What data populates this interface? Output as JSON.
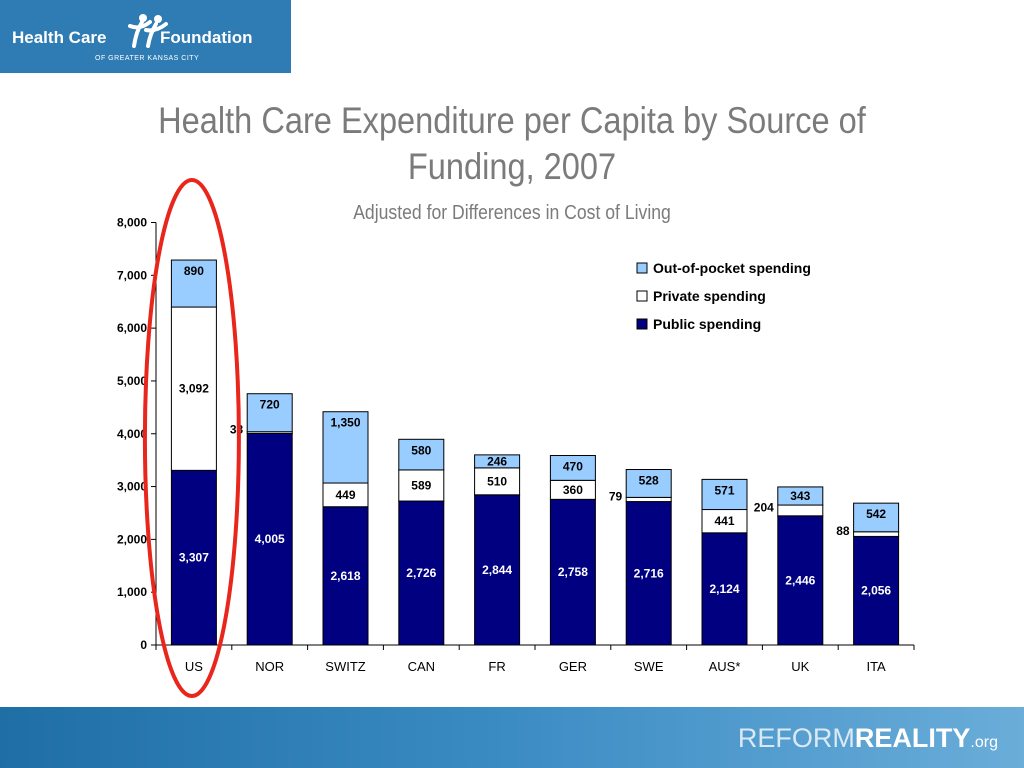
{
  "logo": {
    "name_left": "Health Care",
    "name_right": "Foundation",
    "subtitle": "OF GREATER KANSAS CITY",
    "icon": "people-figures-icon"
  },
  "slide": {
    "title_line1": "Health Care Expenditure per Capita by Source of",
    "title_line2": "Funding, 2007",
    "subtitle": "Adjusted for Differences in Cost of Living"
  },
  "footer": {
    "brand_part1": "REFORM",
    "brand_part2": "REALITY",
    "brand_part3": ".org"
  },
  "chart_data": {
    "type": "bar",
    "stacked": true,
    "categories": [
      "US",
      "NOR",
      "SWITZ",
      "CAN",
      "FR",
      "GER",
      "SWE",
      "AUS*",
      "UK",
      "ITA"
    ],
    "series": [
      {
        "name": "Public spending",
        "values": [
          3307,
          4005,
          2618,
          2726,
          2844,
          2758,
          2716,
          2124,
          2446,
          2056
        ],
        "color": "#000080",
        "label_color": "#ffffff"
      },
      {
        "name": "Private spending",
        "values": [
          3092,
          33,
          449,
          589,
          510,
          360,
          79,
          441,
          204,
          88
        ],
        "color": "#ffffff",
        "label_color": "#000000"
      },
      {
        "name": "Out-of-pocket spending",
        "values": [
          890,
          720,
          1350,
          580,
          246,
          470,
          528,
          571,
          343,
          542
        ],
        "color": "#99ccff",
        "label_color": "#000000"
      }
    ],
    "data_labels": {
      "public": [
        "3,307",
        "4,005",
        "2,618",
        "2,726",
        "2,844",
        "2,758",
        "2,716",
        "2,124",
        "2,446",
        "2,056"
      ],
      "private": [
        "3,092",
        "33",
        "449",
        "589",
        "510",
        "360",
        "79",
        "441",
        "204",
        "88"
      ],
      "out_of_pocket": [
        "890",
        "720",
        "1,350",
        "580",
        "246",
        "470",
        "528",
        "571",
        "343",
        "542"
      ]
    },
    "ylim": [
      0,
      8000
    ],
    "yticks": [
      0,
      1000,
      2000,
      3000,
      4000,
      5000,
      6000,
      7000,
      8000
    ],
    "ytick_labels": [
      "0",
      "1,000",
      "2,000",
      "3,000",
      "4,000",
      "5,000",
      "6,000",
      "7,000",
      "8,000"
    ],
    "legend": {
      "placement": "top-right",
      "entries": [
        "Out-of-pocket spending",
        "Private spending",
        "Public spending"
      ]
    },
    "grid": false,
    "highlight": {
      "category": "US",
      "shape": "ellipse",
      "color": "#e8261c"
    }
  }
}
